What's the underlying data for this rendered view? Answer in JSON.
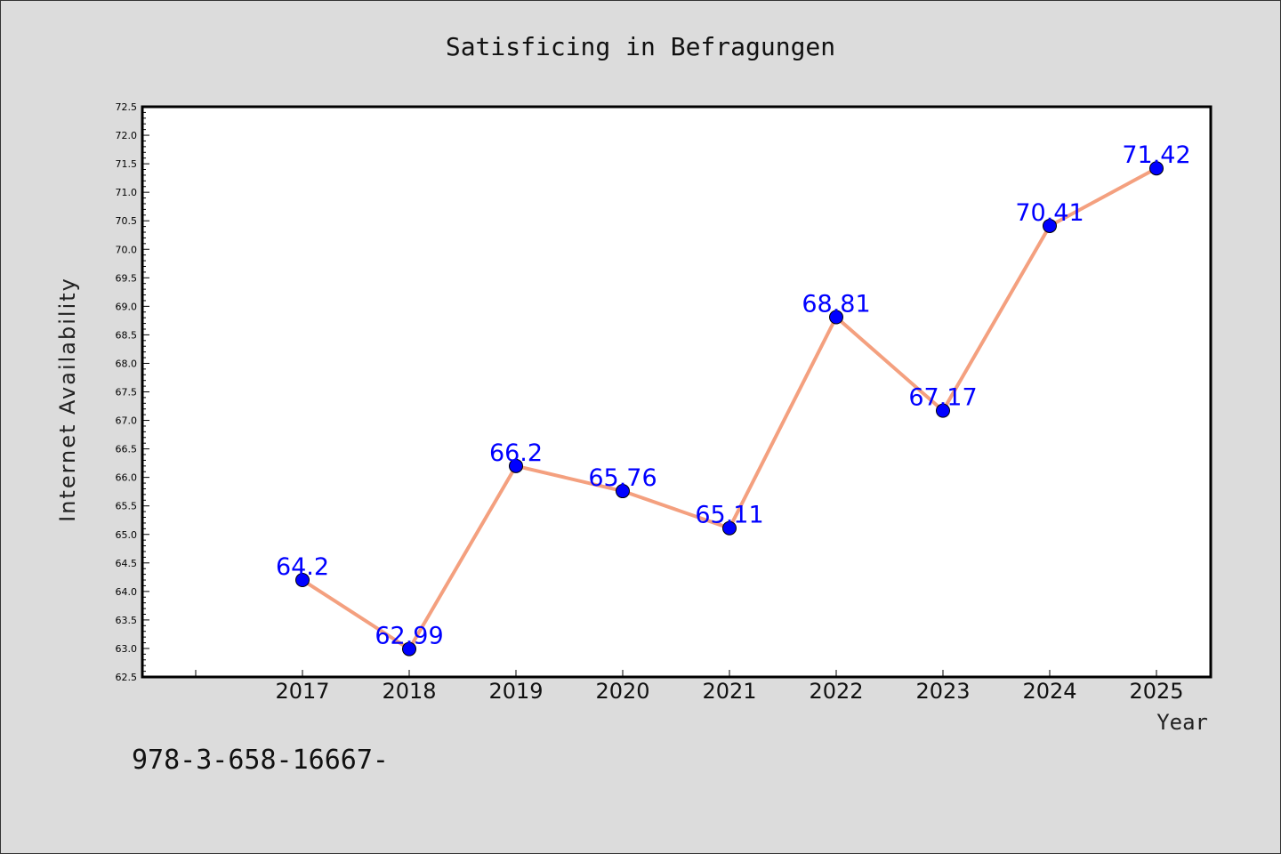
{
  "chart_data": {
    "type": "line",
    "title": "Satisficing in Befragungen",
    "xlabel": "Year",
    "ylabel": "Internet Availability",
    "categories": [
      "2017",
      "2018",
      "2019",
      "2020",
      "2021",
      "2022",
      "2023",
      "2024",
      "2025"
    ],
    "series": [
      {
        "values": [
          64.2,
          62.99,
          66.2,
          65.76,
          65.11,
          68.81,
          67.17,
          70.41,
          71.42
        ],
        "labels": [
          "64.2",
          "62.99",
          "66.2",
          "65.76",
          "65.11",
          "68.81",
          "67.17",
          "70.41",
          "71.42"
        ],
        "line_color": "#f4a07f",
        "marker_color": "#0000ff"
      }
    ],
    "ylim": [
      62.5,
      72.5
    ],
    "yticks": [
      "62.5",
      "63.0",
      "63.5",
      "64.0",
      "64.5",
      "65.0",
      "65.5",
      "66.0",
      "66.5",
      "67.0",
      "67.5",
      "68.0",
      "68.5",
      "69.0",
      "69.5",
      "70.0",
      "70.5",
      "71.0",
      "71.5",
      "72.0",
      "72.5"
    ],
    "grid": false,
    "label_color": "#0000ff"
  },
  "footer_text": "978-3-658-16667-"
}
